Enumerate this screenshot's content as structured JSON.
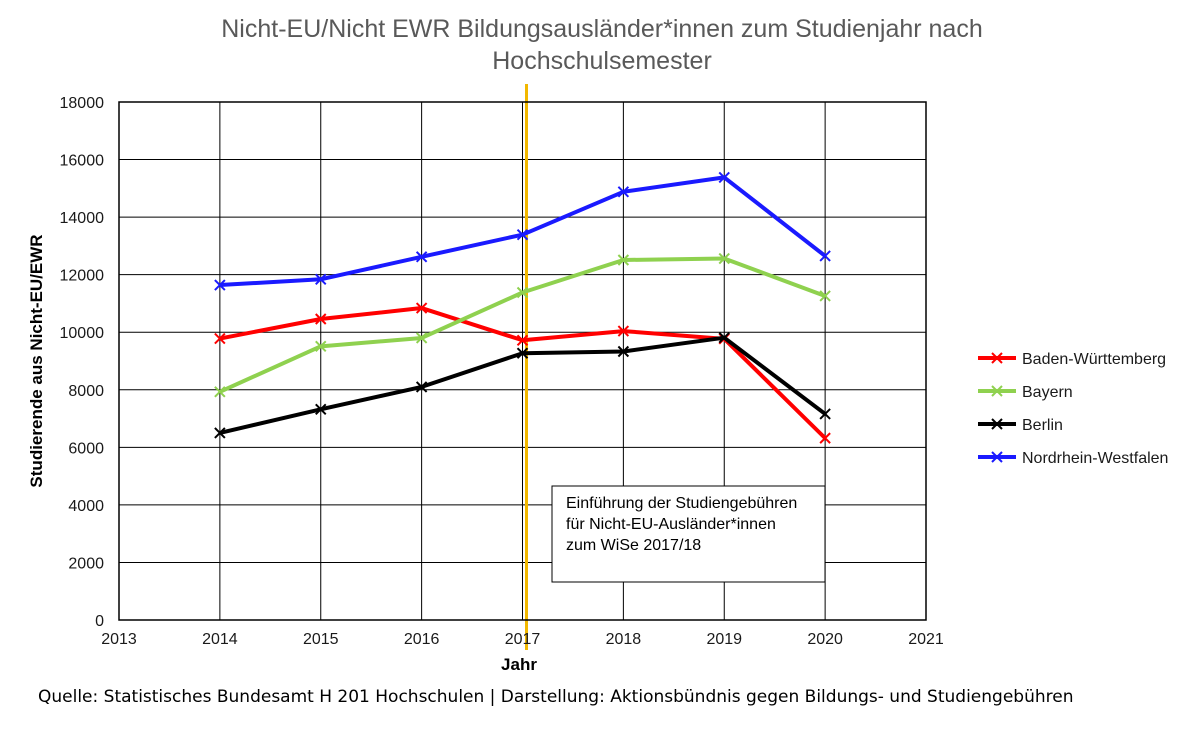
{
  "chart_data": {
    "type": "line",
    "title_lines": [
      "Nicht-EU/Nicht EWR Bildungsausländer*innen zum Studienjahr nach",
      "Hochschulsemester"
    ],
    "xlabel": "Jahr",
    "ylabel": "Studierende aus Nicht-EU/EWR",
    "xlim": [
      2013,
      2021
    ],
    "ylim": [
      0,
      18000
    ],
    "xticks": [
      2013,
      2014,
      2015,
      2016,
      2017,
      2018,
      2019,
      2020,
      2021
    ],
    "yticks": [
      0,
      2000,
      4000,
      6000,
      8000,
      10000,
      12000,
      14000,
      16000,
      18000
    ],
    "grid": true,
    "legend_position": "right",
    "x": [
      2014,
      2015,
      2016,
      2017,
      2018,
      2019,
      2020
    ],
    "series": [
      {
        "name": "Baden-Württemberg",
        "color": "#ff0000",
        "values": [
          9780,
          10460,
          10840,
          9720,
          10040,
          9770,
          6320
        ]
      },
      {
        "name": "Bayern",
        "color": "#8fd14f",
        "values": [
          7930,
          9510,
          9800,
          11380,
          12510,
          12560,
          11260
        ]
      },
      {
        "name": "Berlin",
        "color": "#000000",
        "values": [
          6500,
          7320,
          8100,
          9270,
          9330,
          9810,
          7160
        ]
      },
      {
        "name": "Nordrhein-Westfalen",
        "color": "#1a1aff",
        "values": [
          11640,
          11840,
          12620,
          13390,
          14880,
          15380,
          12650
        ]
      }
    ],
    "reference_line": {
      "x": 2017,
      "color": "#f2b800"
    },
    "annotation": {
      "lines": [
        "Einführung der Studiengebühren",
        "für Nicht-EU-Ausländer*innen",
        "zum WiSe 2017/18"
      ]
    }
  },
  "source_text": "Quelle: Statistisches Bundesamt H 201 Hochschulen | Darstellung: Aktionsbündnis gegen Bildungs- und Studiengebühren"
}
